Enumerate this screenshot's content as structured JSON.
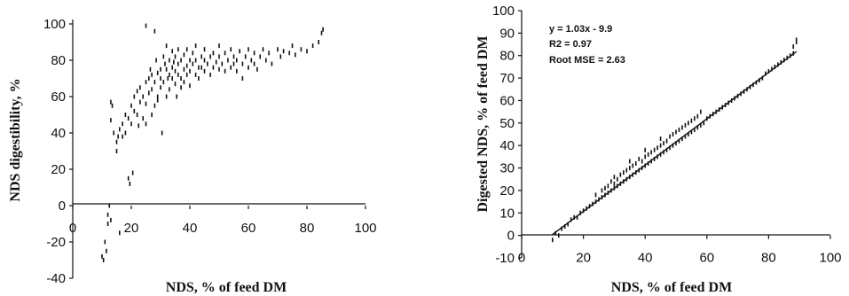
{
  "chart_data": [
    {
      "type": "scatter",
      "title": "",
      "xlabel": "NDS, % of feed DM",
      "ylabel": "NDS digestibility, %",
      "xlim": [
        0,
        100
      ],
      "ylim": [
        -40,
        100
      ],
      "x_ticks": [
        "0",
        "20",
        "40",
        "60",
        "80",
        "100"
      ],
      "y_ticks": [
        "100",
        "80",
        "60",
        "40",
        "20",
        "0",
        "-20",
        "-40"
      ],
      "grid": false,
      "points": [
        [
          10,
          -28
        ],
        [
          10.5,
          -30
        ],
        [
          11,
          -20
        ],
        [
          11.5,
          -25
        ],
        [
          12,
          -10
        ],
        [
          12,
          -5
        ],
        [
          12.5,
          0
        ],
        [
          13,
          -8
        ],
        [
          13,
          47
        ],
        [
          13,
          57
        ],
        [
          13.5,
          55
        ],
        [
          14,
          40
        ],
        [
          15,
          30
        ],
        [
          15,
          35
        ],
        [
          15.5,
          38
        ],
        [
          16,
          42
        ],
        [
          16,
          -15
        ],
        [
          17,
          45
        ],
        [
          17,
          38
        ],
        [
          18,
          50
        ],
        [
          18,
          40
        ],
        [
          19,
          48
        ],
        [
          19,
          15
        ],
        [
          19.5,
          12
        ],
        [
          20,
          55
        ],
        [
          20,
          45
        ],
        [
          20.5,
          18
        ],
        [
          21,
          60
        ],
        [
          21,
          52
        ],
        [
          22,
          50
        ],
        [
          22,
          63
        ],
        [
          22.5,
          44
        ],
        [
          23,
          57
        ],
        [
          23,
          65
        ],
        [
          24,
          48
        ],
        [
          24,
          60
        ],
        [
          25,
          45
        ],
        [
          25,
          56
        ],
        [
          25,
          68
        ],
        [
          25,
          99
        ],
        [
          26,
          62
        ],
        [
          26,
          70
        ],
        [
          26.5,
          75
        ],
        [
          27,
          50
        ],
        [
          27,
          64
        ],
        [
          27,
          72
        ],
        [
          28,
          55
        ],
        [
          28,
          68
        ],
        [
          28,
          96
        ],
        [
          28.5,
          80
        ],
        [
          29,
          60
        ],
        [
          29,
          73
        ],
        [
          29,
          58
        ],
        [
          30,
          65
        ],
        [
          30,
          75
        ],
        [
          30,
          70
        ],
        [
          30.5,
          40
        ],
        [
          31,
          82
        ],
        [
          31,
          68
        ],
        [
          31.5,
          78
        ],
        [
          32,
          60
        ],
        [
          32,
          75
        ],
        [
          32,
          88
        ],
        [
          32.5,
          70
        ],
        [
          33,
          72
        ],
        [
          33,
          80
        ],
        [
          33,
          64
        ],
        [
          34,
          76
        ],
        [
          34,
          85
        ],
        [
          34,
          70
        ],
        [
          34.5,
          79
        ],
        [
          35,
          67
        ],
        [
          35,
          74
        ],
        [
          35,
          82
        ],
        [
          35.5,
          60
        ],
        [
          36,
          78
        ],
        [
          36,
          72
        ],
        [
          36,
          86
        ],
        [
          37,
          70
        ],
        [
          37,
          80
        ],
        [
          37,
          65
        ],
        [
          38,
          75
        ],
        [
          38,
          83
        ],
        [
          38,
          68
        ],
        [
          39,
          77
        ],
        [
          39,
          72
        ],
        [
          39,
          86
        ],
        [
          40,
          74
        ],
        [
          40,
          80
        ],
        [
          40,
          66
        ],
        [
          41,
          78
        ],
        [
          41,
          84
        ],
        [
          42,
          72
        ],
        [
          42,
          80
        ],
        [
          42,
          88
        ],
        [
          43,
          76
        ],
        [
          43,
          70
        ],
        [
          44,
          82
        ],
        [
          44,
          76
        ],
        [
          45,
          74
        ],
        [
          45,
          80
        ],
        [
          45,
          86
        ],
        [
          46,
          78
        ],
        [
          47,
          72
        ],
        [
          47,
          82
        ],
        [
          48,
          76
        ],
        [
          48,
          84
        ],
        [
          49,
          79
        ],
        [
          50,
          75
        ],
        [
          50,
          82
        ],
        [
          50,
          88
        ],
        [
          51,
          78
        ],
        [
          52,
          74
        ],
        [
          52,
          84
        ],
        [
          53,
          80
        ],
        [
          54,
          76
        ],
        [
          54,
          86
        ],
        [
          55,
          78
        ],
        [
          55,
          82
        ],
        [
          56,
          74
        ],
        [
          56,
          80
        ],
        [
          57,
          85
        ],
        [
          58,
          78
        ],
        [
          58,
          70
        ],
        [
          59,
          82
        ],
        [
          60,
          76
        ],
        [
          60,
          86
        ],
        [
          61,
          80
        ],
        [
          62,
          84
        ],
        [
          62,
          78
        ],
        [
          63,
          75
        ],
        [
          64,
          82
        ],
        [
          65,
          86
        ],
        [
          66,
          80
        ],
        [
          67,
          84
        ],
        [
          68,
          78
        ],
        [
          70,
          86
        ],
        [
          71,
          82
        ],
        [
          72,
          85
        ],
        [
          74,
          84
        ],
        [
          75,
          88
        ],
        [
          76,
          83
        ],
        [
          78,
          86
        ],
        [
          80,
          85
        ],
        [
          82,
          88
        ],
        [
          84,
          90
        ],
        [
          85,
          95
        ],
        [
          85.5,
          97
        ]
      ]
    },
    {
      "type": "scatter",
      "title": "",
      "xlabel": "NDS, % of feed DM",
      "ylabel": "Digested NDS, % of feed DM",
      "xlim": [
        0,
        100
      ],
      "ylim": [
        -10,
        100
      ],
      "x_ticks": [
        "0",
        "20",
        "40",
        "60",
        "80",
        "100"
      ],
      "y_ticks": [
        "100",
        "90",
        "80",
        "70",
        "60",
        "50",
        "40",
        "30",
        "20",
        "10",
        "0",
        "-10"
      ],
      "grid": false,
      "annotations": [
        "y = 1.03x - 9.9",
        "R2 = 0.97",
        "Root MSE =  2.63"
      ],
      "fit_line": {
        "slope": 1.03,
        "intercept": -9.9,
        "x_range": [
          10,
          89
        ]
      },
      "points": [
        [
          10,
          -2
        ],
        [
          11,
          1
        ],
        [
          12,
          0
        ],
        [
          13,
          3
        ],
        [
          14,
          4
        ],
        [
          15,
          5
        ],
        [
          16,
          7
        ],
        [
          17,
          8
        ],
        [
          18,
          8
        ],
        [
          19,
          10
        ],
        [
          20,
          11
        ],
        [
          21,
          12
        ],
        [
          22,
          13
        ],
        [
          23,
          14
        ],
        [
          24,
          15
        ],
        [
          24,
          18
        ],
        [
          25,
          16
        ],
        [
          26,
          17
        ],
        [
          26,
          20
        ],
        [
          27,
          18
        ],
        [
          27,
          21
        ],
        [
          28,
          19
        ],
        [
          28,
          22
        ],
        [
          29,
          20
        ],
        [
          29,
          24
        ],
        [
          30,
          21
        ],
        [
          30,
          23
        ],
        [
          30,
          26
        ],
        [
          31,
          22
        ],
        [
          31,
          25
        ],
        [
          32,
          23
        ],
        [
          32,
          27
        ],
        [
          33,
          24
        ],
        [
          33,
          28
        ],
        [
          34,
          25
        ],
        [
          34,
          29
        ],
        [
          35,
          26
        ],
        [
          35,
          30
        ],
        [
          35,
          33
        ],
        [
          36,
          27
        ],
        [
          36,
          31
        ],
        [
          37,
          28
        ],
        [
          37,
          32
        ],
        [
          38,
          29
        ],
        [
          38,
          34
        ],
        [
          39,
          30
        ],
        [
          39,
          33
        ],
        [
          40,
          31
        ],
        [
          40,
          35
        ],
        [
          40,
          38
        ],
        [
          41,
          32
        ],
        [
          41,
          36
        ],
        [
          42,
          33
        ],
        [
          42,
          37
        ],
        [
          43,
          34
        ],
        [
          43,
          38
        ],
        [
          44,
          35
        ],
        [
          44,
          39
        ],
        [
          45,
          36
        ],
        [
          45,
          40
        ],
        [
          45,
          43
        ],
        [
          46,
          37
        ],
        [
          46,
          41
        ],
        [
          47,
          38
        ],
        [
          47,
          42
        ],
        [
          48,
          39
        ],
        [
          48,
          44
        ],
        [
          49,
          40
        ],
        [
          49,
          45
        ],
        [
          50,
          41
        ],
        [
          50,
          46
        ],
        [
          51,
          42
        ],
        [
          51,
          47
        ],
        [
          52,
          43
        ],
        [
          52,
          48
        ],
        [
          53,
          44
        ],
        [
          53,
          49
        ],
        [
          54,
          45
        ],
        [
          54,
          50
        ],
        [
          55,
          46
        ],
        [
          55,
          51
        ],
        [
          56,
          47
        ],
        [
          56,
          52
        ],
        [
          57,
          48
        ],
        [
          57,
          53
        ],
        [
          58,
          49
        ],
        [
          58,
          55
        ],
        [
          59,
          50
        ],
        [
          60,
          52
        ],
        [
          61,
          53
        ],
        [
          62,
          54
        ],
        [
          63,
          55
        ],
        [
          64,
          56
        ],
        [
          65,
          57
        ],
        [
          66,
          58
        ],
        [
          67,
          59
        ],
        [
          68,
          60
        ],
        [
          69,
          61
        ],
        [
          70,
          62
        ],
        [
          71,
          63
        ],
        [
          72,
          64
        ],
        [
          73,
          65
        ],
        [
          74,
          66
        ],
        [
          75,
          67
        ],
        [
          76,
          68
        ],
        [
          77,
          69
        ],
        [
          78,
          70
        ],
        [
          79,
          72
        ],
        [
          80,
          73
        ],
        [
          81,
          74
        ],
        [
          82,
          75
        ],
        [
          83,
          76
        ],
        [
          84,
          77
        ],
        [
          85,
          78
        ],
        [
          86,
          79
        ],
        [
          87,
          80
        ],
        [
          88,
          81
        ],
        [
          88,
          84
        ],
        [
          89,
          86
        ],
        [
          89,
          87
        ]
      ]
    }
  ]
}
